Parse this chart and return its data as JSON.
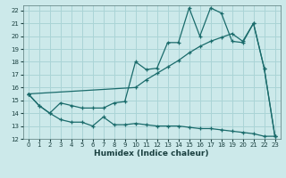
{
  "xlabel": "Humidex (Indice chaleur)",
  "background_color": "#cce9ea",
  "grid_color": "#aad4d6",
  "line_color": "#1a6b6b",
  "xlim": [
    -0.5,
    23.5
  ],
  "ylim": [
    12,
    22.4
  ],
  "xticks": [
    0,
    1,
    2,
    3,
    4,
    5,
    6,
    7,
    8,
    9,
    10,
    11,
    12,
    13,
    14,
    15,
    16,
    17,
    18,
    19,
    20,
    21,
    22,
    23
  ],
  "yticks": [
    12,
    13,
    14,
    15,
    16,
    17,
    18,
    19,
    20,
    21,
    22
  ],
  "line1_x": [
    0,
    1,
    2,
    3,
    4,
    5,
    6,
    7,
    8,
    9,
    10,
    11,
    12,
    13,
    14,
    15,
    16,
    17,
    18,
    19,
    20,
    21,
    22,
    23
  ],
  "line1_y": [
    15.5,
    14.6,
    14.0,
    13.5,
    13.3,
    13.3,
    13.0,
    13.7,
    13.1,
    13.1,
    13.2,
    13.1,
    13.0,
    13.0,
    13.0,
    12.9,
    12.8,
    12.8,
    12.7,
    12.6,
    12.5,
    12.4,
    12.2,
    12.2
  ],
  "line2_x": [
    0,
    1,
    2,
    3,
    4,
    5,
    6,
    7,
    8,
    9,
    10,
    11,
    12,
    13,
    14,
    15,
    16,
    17,
    18,
    19,
    20,
    21,
    22,
    23
  ],
  "line2_y": [
    15.5,
    14.6,
    14.0,
    14.8,
    14.6,
    14.4,
    14.4,
    14.4,
    14.8,
    14.9,
    18.0,
    17.4,
    17.5,
    19.5,
    19.5,
    22.2,
    20.0,
    22.2,
    21.8,
    19.6,
    19.5,
    21.0,
    17.5,
    12.2
  ],
  "line3_x": [
    0,
    10,
    11,
    12,
    13,
    14,
    15,
    16,
    17,
    18,
    19,
    20,
    21,
    22,
    23
  ],
  "line3_y": [
    15.5,
    16.0,
    16.6,
    17.1,
    17.6,
    18.1,
    18.7,
    19.2,
    19.6,
    19.9,
    20.2,
    19.6,
    21.0,
    17.5,
    12.2
  ]
}
